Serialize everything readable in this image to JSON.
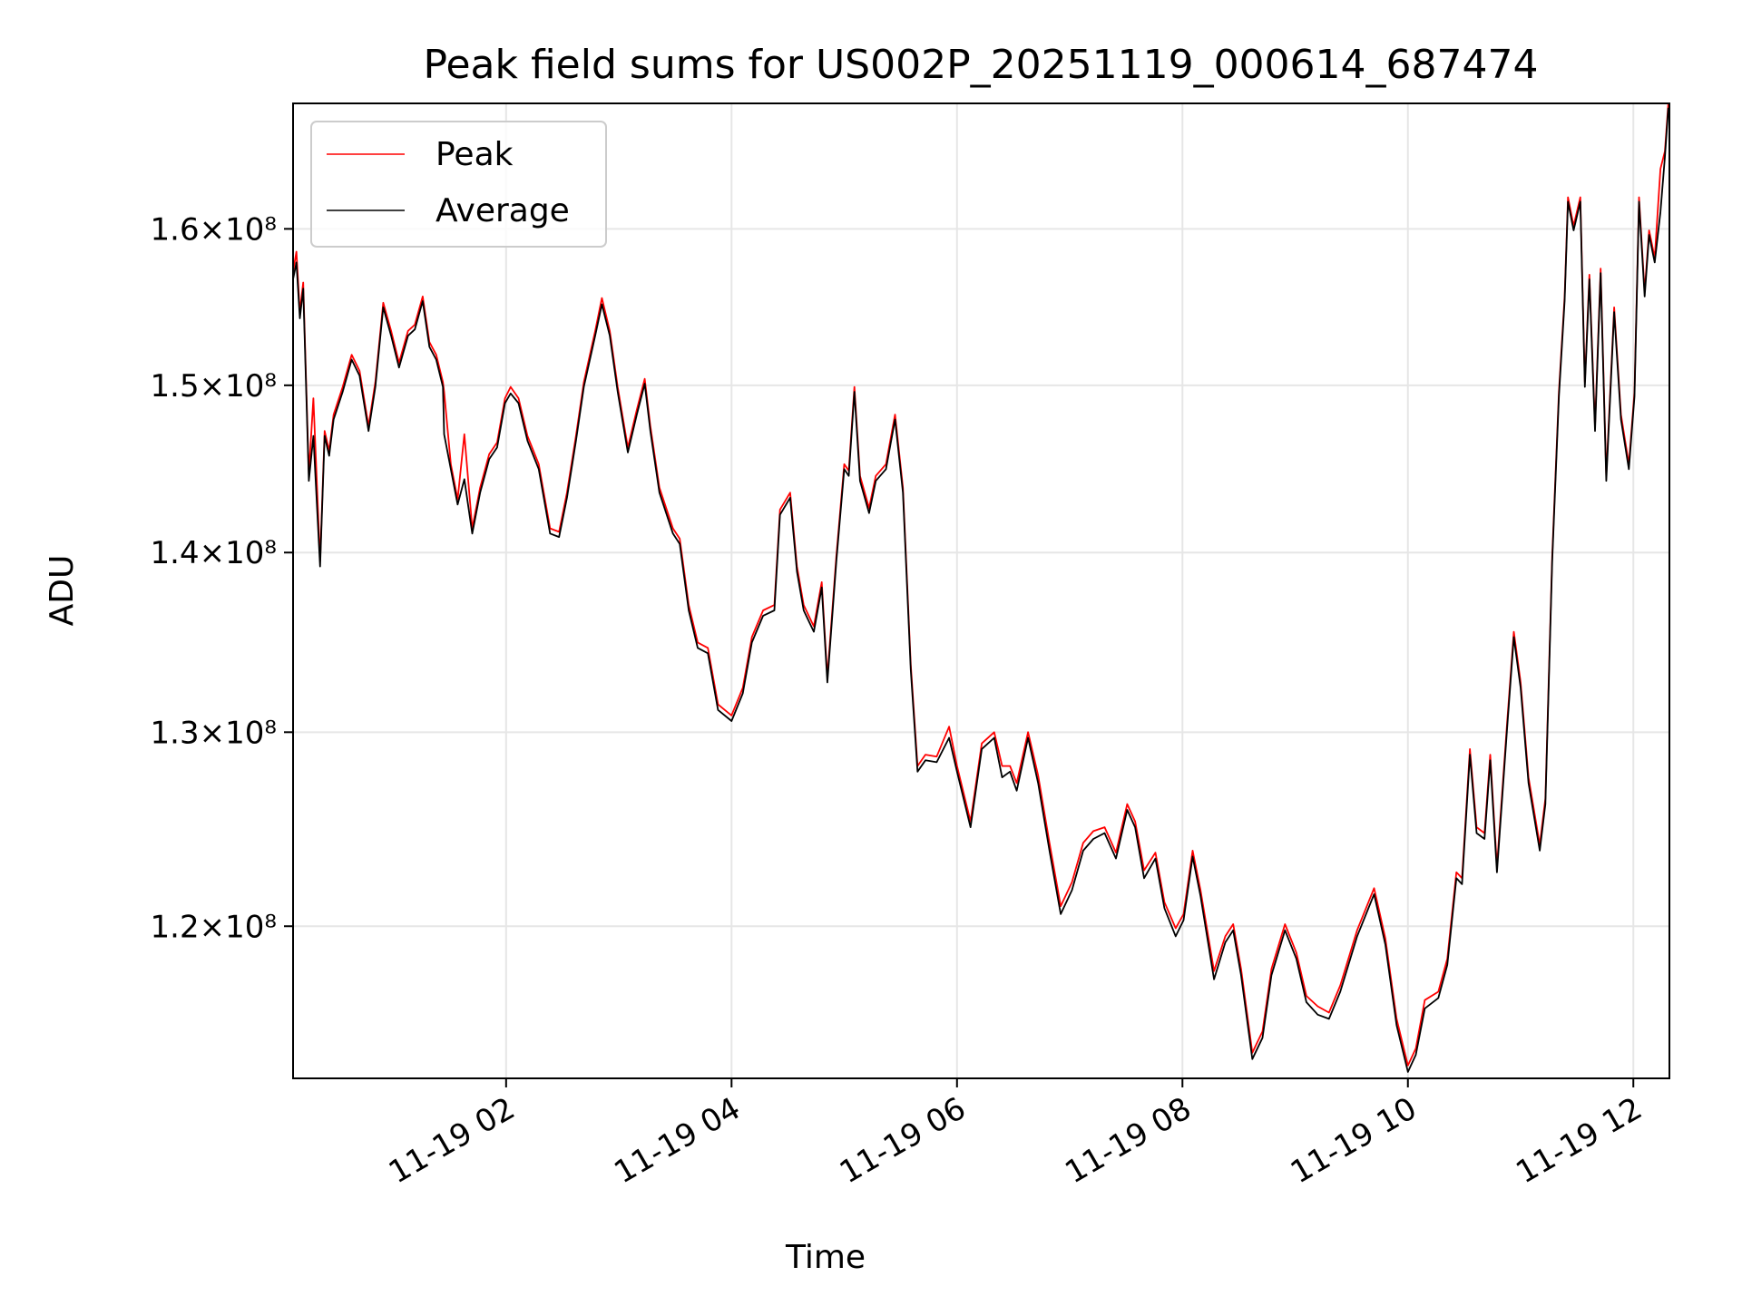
{
  "chart_data": {
    "type": "line",
    "title": "Peak field sums for US002P_20251119_000614_687474",
    "xlabel": "Time",
    "ylabel": "ADU",
    "x_units": "hours since 11-19 00:00",
    "xlim": [
      0.11,
      12.32
    ],
    "ylim": [
      112700000.0,
      168500000.0
    ],
    "yscale": "log",
    "grid": true,
    "legend_position": "top-left",
    "x_ticks": [
      {
        "value": 2,
        "label": "11-19 02"
      },
      {
        "value": 4,
        "label": "11-19 04"
      },
      {
        "value": 6,
        "label": "11-19 06"
      },
      {
        "value": 8,
        "label": "11-19 08"
      },
      {
        "value": 10,
        "label": "11-19 10"
      },
      {
        "value": 12,
        "label": "11-19 12"
      }
    ],
    "y_ticks": [
      {
        "value": 120000000.0,
        "label": "1.2×10⁸"
      },
      {
        "value": 130000000.0,
        "label": "1.3×10⁸"
      },
      {
        "value": 140000000.0,
        "label": "1.4×10⁸"
      },
      {
        "value": 150000000.0,
        "label": "1.5×10⁸"
      },
      {
        "value": 160000000.0,
        "label": "1.6×10⁸"
      }
    ],
    "series": [
      {
        "name": "Peak",
        "color": "#ff0000",
        "value_index": 2
      },
      {
        "name": "Average",
        "color": "#000000",
        "value_index": 1
      }
    ],
    "value_scale": 100000000.0,
    "points_hour_average_peak": [
      [
        0.11,
        1.567,
        1.572
      ],
      [
        0.14,
        1.578,
        1.585
      ],
      [
        0.17,
        1.542,
        1.546
      ],
      [
        0.2,
        1.561,
        1.565
      ],
      [
        0.25,
        1.442,
        1.446
      ],
      [
        0.29,
        1.469,
        1.492
      ],
      [
        0.35,
        1.392,
        1.395
      ],
      [
        0.39,
        1.469,
        1.472
      ],
      [
        0.43,
        1.457,
        1.46
      ],
      [
        0.47,
        1.479,
        1.482
      ],
      [
        0.55,
        1.496,
        1.499
      ],
      [
        0.63,
        1.516,
        1.519
      ],
      [
        0.7,
        1.506,
        1.509
      ],
      [
        0.78,
        1.472,
        1.475
      ],
      [
        0.84,
        1.499,
        1.502
      ],
      [
        0.91,
        1.549,
        1.552
      ],
      [
        0.98,
        1.531,
        1.534
      ],
      [
        1.05,
        1.511,
        1.514
      ],
      [
        1.13,
        1.531,
        1.534
      ],
      [
        1.19,
        1.535,
        1.538
      ],
      [
        1.26,
        1.553,
        1.556
      ],
      [
        1.32,
        1.524,
        1.527
      ],
      [
        1.38,
        1.516,
        1.519
      ],
      [
        1.44,
        1.499,
        1.502
      ],
      [
        1.45,
        1.47,
        1.496
      ],
      [
        1.51,
        1.449,
        1.452
      ],
      [
        1.57,
        1.428,
        1.431
      ],
      [
        1.63,
        1.443,
        1.47
      ],
      [
        1.7,
        1.411,
        1.414
      ],
      [
        1.77,
        1.435,
        1.438
      ],
      [
        1.85,
        1.455,
        1.458
      ],
      [
        1.92,
        1.462,
        1.465
      ],
      [
        1.99,
        1.489,
        1.492
      ],
      [
        2.04,
        1.495,
        1.499
      ],
      [
        2.11,
        1.489,
        1.492
      ],
      [
        2.19,
        1.466,
        1.469
      ],
      [
        2.29,
        1.449,
        1.452
      ],
      [
        2.39,
        1.411,
        1.414
      ],
      [
        2.47,
        1.409,
        1.412
      ],
      [
        2.54,
        1.432,
        1.435
      ],
      [
        2.62,
        1.466,
        1.469
      ],
      [
        2.69,
        1.499,
        1.502
      ],
      [
        2.79,
        1.531,
        1.534
      ],
      [
        2.85,
        1.551,
        1.555
      ],
      [
        2.92,
        1.531,
        1.534
      ],
      [
        2.99,
        1.496,
        1.499
      ],
      [
        3.08,
        1.459,
        1.462
      ],
      [
        3.16,
        1.482,
        1.485
      ],
      [
        3.23,
        1.501,
        1.504
      ],
      [
        3.28,
        1.472,
        1.475
      ],
      [
        3.36,
        1.435,
        1.438
      ],
      [
        3.48,
        1.411,
        1.414
      ],
      [
        3.54,
        1.405,
        1.408
      ],
      [
        3.62,
        1.367,
        1.37
      ],
      [
        3.7,
        1.346,
        1.349
      ],
      [
        3.79,
        1.343,
        1.346
      ],
      [
        3.88,
        1.312,
        1.315
      ],
      [
        4.0,
        1.306,
        1.309
      ],
      [
        4.1,
        1.321,
        1.324
      ],
      [
        4.18,
        1.349,
        1.352
      ],
      [
        4.28,
        1.364,
        1.367
      ],
      [
        4.38,
        1.367,
        1.37
      ],
      [
        4.43,
        1.422,
        1.425
      ],
      [
        4.52,
        1.432,
        1.435
      ],
      [
        4.58,
        1.389,
        1.392
      ],
      [
        4.64,
        1.367,
        1.37
      ],
      [
        4.73,
        1.355,
        1.358
      ],
      [
        4.8,
        1.38,
        1.383
      ],
      [
        4.85,
        1.327,
        1.33
      ],
      [
        4.93,
        1.395,
        1.398
      ],
      [
        5.0,
        1.449,
        1.452
      ],
      [
        5.04,
        1.445,
        1.448
      ],
      [
        5.09,
        1.496,
        1.499
      ],
      [
        5.14,
        1.442,
        1.445
      ],
      [
        5.22,
        1.423,
        1.426
      ],
      [
        5.28,
        1.442,
        1.445
      ],
      [
        5.37,
        1.449,
        1.452
      ],
      [
        5.45,
        1.479,
        1.482
      ],
      [
        5.52,
        1.435,
        1.438
      ],
      [
        5.59,
        1.334,
        1.337
      ],
      [
        5.65,
        1.279,
        1.282
      ],
      [
        5.72,
        1.285,
        1.288
      ],
      [
        5.82,
        1.284,
        1.287
      ],
      [
        5.93,
        1.297,
        1.303
      ],
      [
        6.0,
        1.279,
        1.282
      ],
      [
        6.12,
        1.25,
        1.253
      ],
      [
        6.22,
        1.291,
        1.294
      ],
      [
        6.33,
        1.297,
        1.3
      ],
      [
        6.4,
        1.276,
        1.282
      ],
      [
        6.47,
        1.279,
        1.282
      ],
      [
        6.53,
        1.269,
        1.273
      ],
      [
        6.63,
        1.297,
        1.3
      ],
      [
        6.72,
        1.273,
        1.277
      ],
      [
        6.82,
        1.238,
        1.242
      ],
      [
        6.92,
        1.206,
        1.21
      ],
      [
        7.02,
        1.218,
        1.222
      ],
      [
        7.12,
        1.238,
        1.242
      ],
      [
        7.21,
        1.244,
        1.248
      ],
      [
        7.31,
        1.247,
        1.25
      ],
      [
        7.41,
        1.234,
        1.237
      ],
      [
        7.51,
        1.259,
        1.262
      ],
      [
        7.58,
        1.25,
        1.253
      ],
      [
        7.66,
        1.224,
        1.228
      ],
      [
        7.76,
        1.234,
        1.237
      ],
      [
        7.84,
        1.209,
        1.212
      ],
      [
        7.94,
        1.195,
        1.199
      ],
      [
        8.01,
        1.203,
        1.206
      ],
      [
        8.09,
        1.235,
        1.238
      ],
      [
        8.16,
        1.215,
        1.218
      ],
      [
        8.28,
        1.174,
        1.178
      ],
      [
        8.38,
        1.192,
        1.195
      ],
      [
        8.45,
        1.198,
        1.201
      ],
      [
        8.52,
        1.176,
        1.179
      ],
      [
        8.62,
        1.136,
        1.139
      ],
      [
        8.71,
        1.146,
        1.149
      ],
      [
        8.79,
        1.176,
        1.179
      ],
      [
        8.91,
        1.198,
        1.201
      ],
      [
        9.01,
        1.184,
        1.187
      ],
      [
        9.1,
        1.163,
        1.166
      ],
      [
        9.2,
        1.157,
        1.161
      ],
      [
        9.3,
        1.155,
        1.158
      ],
      [
        9.4,
        1.168,
        1.171
      ],
      [
        9.55,
        1.195,
        1.198
      ],
      [
        9.7,
        1.216,
        1.219
      ],
      [
        9.8,
        1.191,
        1.194
      ],
      [
        9.9,
        1.152,
        1.155
      ],
      [
        10.0,
        1.13,
        1.133
      ],
      [
        10.07,
        1.138,
        1.141
      ],
      [
        10.15,
        1.16,
        1.164
      ],
      [
        10.27,
        1.165,
        1.168
      ],
      [
        10.35,
        1.181,
        1.184
      ],
      [
        10.43,
        1.224,
        1.227
      ],
      [
        10.48,
        1.221,
        1.224
      ],
      [
        10.55,
        1.288,
        1.291
      ],
      [
        10.61,
        1.247,
        1.25
      ],
      [
        10.68,
        1.244,
        1.247
      ],
      [
        10.73,
        1.285,
        1.288
      ],
      [
        10.79,
        1.227,
        1.23
      ],
      [
        10.88,
        1.302,
        1.305
      ],
      [
        10.94,
        1.352,
        1.355
      ],
      [
        11.0,
        1.324,
        1.327
      ],
      [
        11.07,
        1.273,
        1.276
      ],
      [
        11.17,
        1.238,
        1.241
      ],
      [
        11.22,
        1.262,
        1.265
      ],
      [
        11.28,
        1.395,
        1.398
      ],
      [
        11.34,
        1.493,
        1.496
      ],
      [
        11.39,
        1.553,
        1.556
      ],
      [
        11.42,
        1.618,
        1.621
      ],
      [
        11.47,
        1.599,
        1.602
      ],
      [
        11.53,
        1.618,
        1.621
      ],
      [
        11.57,
        1.499,
        1.502
      ],
      [
        11.61,
        1.567,
        1.57
      ],
      [
        11.66,
        1.472,
        1.475
      ],
      [
        11.71,
        1.571,
        1.574
      ],
      [
        11.76,
        1.442,
        1.445
      ],
      [
        11.83,
        1.546,
        1.549
      ],
      [
        11.89,
        1.479,
        1.482
      ],
      [
        11.96,
        1.449,
        1.452
      ],
      [
        12.01,
        1.493,
        1.496
      ],
      [
        12.05,
        1.618,
        1.621
      ],
      [
        12.1,
        1.556,
        1.559
      ],
      [
        12.14,
        1.596,
        1.599
      ],
      [
        12.19,
        1.578,
        1.581
      ],
      [
        12.24,
        1.611,
        1.64
      ],
      [
        12.28,
        1.648,
        1.652
      ],
      [
        12.31,
        1.682,
        1.685
      ]
    ]
  }
}
